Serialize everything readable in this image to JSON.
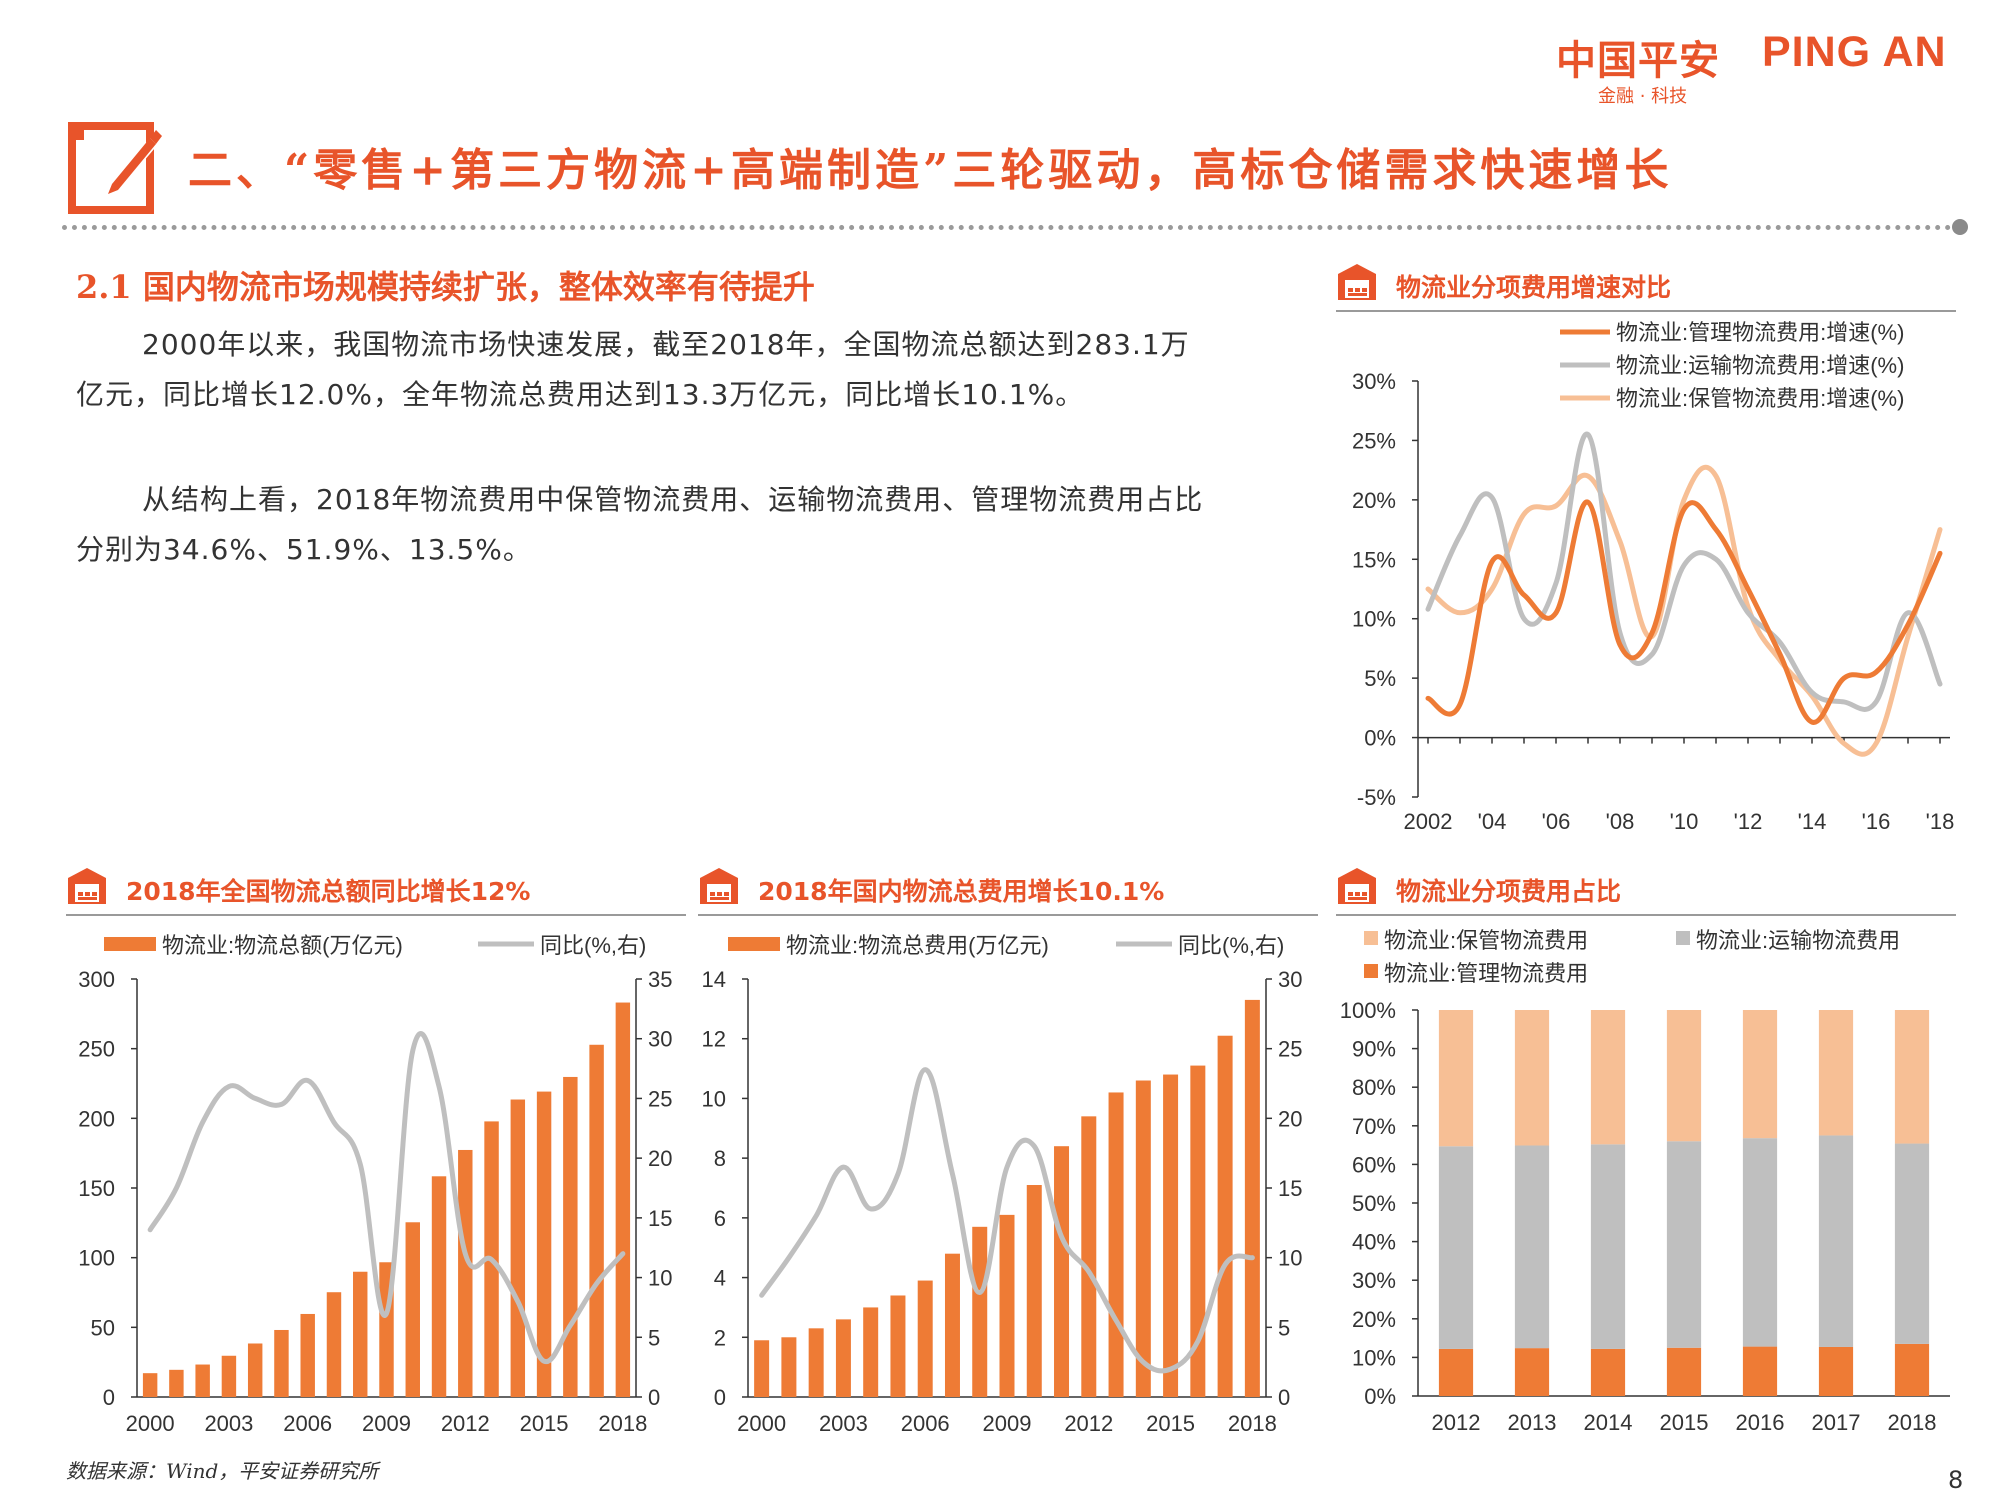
{
  "logo": {
    "cn": "中国平安",
    "en": "PING AN",
    "sub": "金融 · 科技"
  },
  "main_title": "二、“零售+第三方物流+高端制造”三轮驱动，高标仓储需求快速增长",
  "section_title": "2.1  国内物流市场规模持续扩张，整体效率有待提升",
  "paragraphs": [
    "2000年以来，我国物流市场快速发展，截至2018年，全国物流总额达到283.1万亿元，同比增长12.0%，全年物流总费用达到13.3万亿元，同比增长10.1%。",
    "从结构上看，2018年物流费用中保管物流费用、运输物流费用、管理物流费用占比分别为34.6%、51.9%、13.5%。"
  ],
  "chart_titles": {
    "c1": "物流业分项费用增速对比",
    "c2": "2018年全国物流总额同比增长12%",
    "c3": "2018年国内物流总费用增长10.1%",
    "c4": "物流业分项费用占比"
  },
  "source": "数据来源：Wind，平安证券研究所",
  "page_number": "8",
  "colors": {
    "orange": "#ee7b35",
    "gray": "#bfbfbf",
    "peach": "#f7bf95",
    "brand": "#e8542a"
  },
  "chart_data": [
    {
      "id": "c1",
      "type": "line",
      "title": "物流业分项费用增速对比",
      "x": [
        2002,
        2003,
        2004,
        2005,
        2006,
        2007,
        2008,
        2009,
        2010,
        2011,
        2012,
        2013,
        2014,
        2015,
        2016,
        2017,
        2018
      ],
      "x_tick_labels": [
        "2002",
        "'04",
        "'06",
        "'08",
        "'10",
        "'12",
        "'14",
        "'16",
        "'18"
      ],
      "ylim": [
        -5,
        30
      ],
      "y_tick_labels": [
        "-5%",
        "0%",
        "5%",
        "10%",
        "15%",
        "20%",
        "25%",
        "30%"
      ],
      "legend_position": "top-right",
      "series": [
        {
          "name": "物流业:管理物流费用:增速(%)",
          "color": "#ee7b35",
          "values": [
            3.3,
            2.8,
            14.8,
            12.0,
            10.5,
            19.8,
            7.8,
            8.8,
            19.2,
            17.5,
            12.5,
            7.0,
            1.3,
            5.0,
            5.5,
            9.5,
            15.5
          ]
        },
        {
          "name": "物流业:运输物流费用:增速(%)",
          "color": "#bfbfbf",
          "values": [
            10.8,
            17.0,
            20.2,
            10.0,
            13.0,
            25.5,
            8.8,
            7.0,
            14.5,
            15.0,
            10.5,
            8.0,
            3.8,
            3.0,
            3.0,
            10.5,
            4.5
          ]
        },
        {
          "name": "物流业:保管物流费用:增速(%)",
          "color": "#f7bf95",
          "values": [
            12.5,
            10.5,
            12.5,
            18.8,
            19.5,
            22.0,
            16.5,
            8.5,
            20.0,
            22.0,
            11.0,
            6.5,
            3.5,
            -0.5,
            -0.5,
            8.5,
            17.5
          ]
        }
      ]
    },
    {
      "id": "c2",
      "type": "bar",
      "title": "2018年全国物流总额同比增长12%",
      "categories": [
        2000,
        2001,
        2002,
        2003,
        2004,
        2005,
        2006,
        2007,
        2008,
        2009,
        2010,
        2011,
        2012,
        2013,
        2014,
        2015,
        2016,
        2017,
        2018
      ],
      "x_tick_labels": [
        "2000",
        "2003",
        "2006",
        "2009",
        "2012",
        "2015",
        "2018"
      ],
      "ylim": [
        0,
        300
      ],
      "y_ticks": [
        0,
        50,
        100,
        150,
        200,
        250,
        300
      ],
      "y2lim": [
        0,
        35
      ],
      "y2_ticks": [
        0,
        5,
        10,
        15,
        20,
        25,
        30,
        35
      ],
      "series": [
        {
          "name": "物流业:物流总额(万亿元)",
          "type": "bar",
          "color": "#ee7b35",
          "values": [
            17.1,
            19.5,
            23.3,
            29.6,
            38.4,
            48.1,
            59.6,
            75.2,
            89.9,
            96.7,
            125.4,
            158.4,
            177.3,
            197.8,
            213.5,
            219.2,
            229.7,
            252.8,
            283.1
          ]
        },
        {
          "name": "同比(%,右)",
          "type": "line",
          "axis": "right",
          "color": "#bfbfbf",
          "values": [
            14.0,
            17.5,
            23.0,
            26.0,
            25.0,
            24.5,
            26.5,
            23.0,
            19.5,
            7.0,
            29.0,
            26.0,
            12.0,
            11.5,
            8.0,
            3.0,
            6.0,
            9.5,
            12.0
          ]
        }
      ]
    },
    {
      "id": "c3",
      "type": "bar",
      "title": "2018年国内物流总费用增长10.1%",
      "categories": [
        2000,
        2001,
        2002,
        2003,
        2004,
        2005,
        2006,
        2007,
        2008,
        2009,
        2010,
        2011,
        2012,
        2013,
        2014,
        2015,
        2016,
        2017,
        2018
      ],
      "x_tick_labels": [
        "2000",
        "2003",
        "2006",
        "2009",
        "2012",
        "2015",
        "2018"
      ],
      "ylim": [
        0,
        14
      ],
      "y_ticks": [
        0,
        2,
        4,
        6,
        8,
        10,
        12,
        14
      ],
      "y2lim": [
        0,
        30
      ],
      "y2_ticks": [
        0,
        5,
        10,
        15,
        20,
        25,
        30
      ],
      "series": [
        {
          "name": "物流业:物流总费用(万亿元)",
          "type": "bar",
          "color": "#ee7b35",
          "values": [
            1.9,
            2.0,
            2.3,
            2.6,
            3.0,
            3.4,
            3.9,
            4.8,
            5.7,
            6.1,
            7.1,
            8.4,
            9.4,
            10.2,
            10.6,
            10.8,
            11.1,
            12.1,
            13.3
          ]
        },
        {
          "name": "同比(%,右)",
          "type": "line",
          "axis": "right",
          "color": "#bfbfbf",
          "values": [
            7.3,
            10.0,
            13.0,
            16.5,
            13.5,
            16.0,
            23.5,
            16.0,
            7.5,
            16.5,
            18.0,
            11.5,
            9.0,
            5.5,
            2.5,
            2.0,
            4.0,
            9.5,
            10.0
          ]
        }
      ]
    },
    {
      "id": "c4",
      "type": "bar",
      "stacked": true,
      "title": "物流业分项费用占比",
      "categories": [
        "2012",
        "2013",
        "2014",
        "2015",
        "2016",
        "2017",
        "2018"
      ],
      "ylim": [
        0,
        100
      ],
      "y_tick_labels": [
        "0%",
        "10%",
        "20%",
        "30%",
        "40%",
        "50%",
        "60%",
        "70%",
        "80%",
        "90%",
        "100%"
      ],
      "series": [
        {
          "name": "物流业:管理物流费用",
          "color": "#ee7b35",
          "values": [
            12.2,
            12.4,
            12.2,
            12.5,
            12.8,
            12.7,
            13.5
          ]
        },
        {
          "name": "物流业:运输物流费用",
          "color": "#bfbfbf",
          "values": [
            52.5,
            52.5,
            53.0,
            53.5,
            54.0,
            54.8,
            51.9
          ]
        },
        {
          "name": "物流业:保管物流费用",
          "color": "#f7bf95",
          "values": [
            35.3,
            35.1,
            34.8,
            34.0,
            33.2,
            32.5,
            34.6
          ]
        }
      ],
      "legend_order": [
        "物流业:保管物流费用",
        "物流业:运输物流费用",
        "物流业:管理物流费用"
      ]
    }
  ]
}
